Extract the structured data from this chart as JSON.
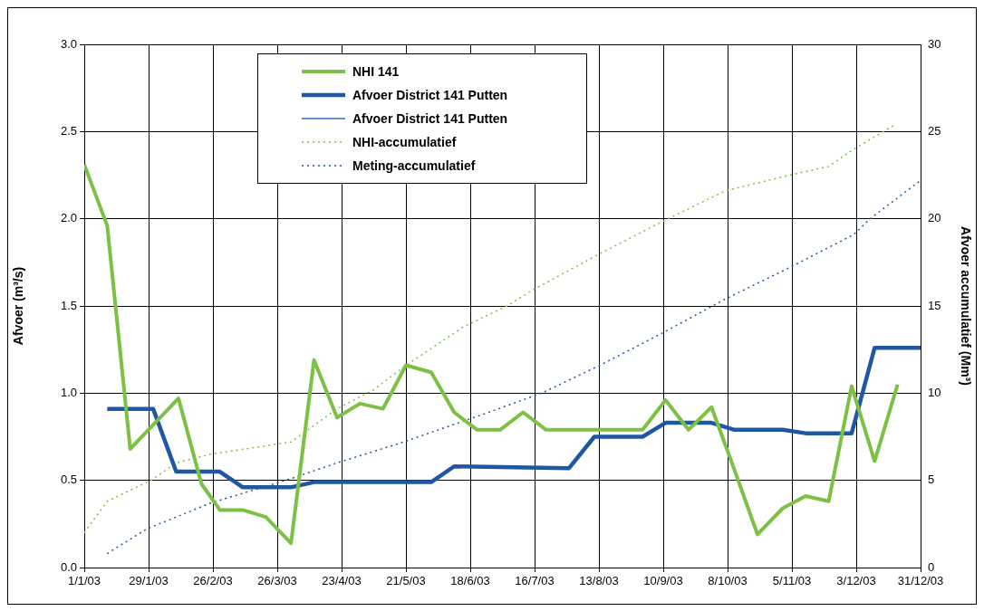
{
  "chart_data": {
    "type": "line",
    "ylabel": "Afvoer (m³/s)",
    "y2label": "Afvoer accumulatief (Mm³)",
    "xlim": [
      "2003-01-01",
      "2003-12-31"
    ],
    "xticks": [
      {
        "value": "2003-01-01",
        "label": "1/1/03"
      },
      {
        "value": "2003-01-29",
        "label": "29/1/03"
      },
      {
        "value": "2003-02-26",
        "label": "26/2/03"
      },
      {
        "value": "2003-03-26",
        "label": "26/3/03"
      },
      {
        "value": "2003-04-23",
        "label": "23/4/03"
      },
      {
        "value": "2003-05-21",
        "label": "21/5/03"
      },
      {
        "value": "2003-06-18",
        "label": "18/6/03"
      },
      {
        "value": "2003-07-16",
        "label": "16/7/03"
      },
      {
        "value": "2003-08-13",
        "label": "13/8/03"
      },
      {
        "value": "2003-09-10",
        "label": "10/9/03"
      },
      {
        "value": "2003-10-08",
        "label": "8/10/03"
      },
      {
        "value": "2003-11-05",
        "label": "5/11/03"
      },
      {
        "value": "2003-12-03",
        "label": "3/12/03"
      },
      {
        "value": "2003-12-31",
        "label": "31/12/03"
      }
    ],
    "ylim": [
      0,
      3
    ],
    "yticks": [
      {
        "value": 0,
        "label": "0.0"
      },
      {
        "value": 0.5,
        "label": "0.5"
      },
      {
        "value": 1,
        "label": "1.0"
      },
      {
        "value": 1.5,
        "label": "1.5"
      },
      {
        "value": 2,
        "label": "2.0"
      },
      {
        "value": 2.5,
        "label": "2.5"
      },
      {
        "value": 3,
        "label": "3.0"
      }
    ],
    "y2lim": [
      0,
      30
    ],
    "y2ticks": [
      0,
      5,
      10,
      15,
      20,
      25,
      30
    ],
    "grid": true,
    "legend": "top left",
    "marker": "none",
    "series": [
      {
        "name": "NHI 141",
        "color": "#7cc143",
        "line_style": "solid",
        "x": [
          "2003-01-01",
          "2003-01-11",
          "2003-01-21",
          "2003-02-11",
          "2003-02-21",
          "2003-03-01",
          "2003-03-11",
          "2003-03-21",
          "2003-04-01",
          "2003-04-11",
          "2003-04-21",
          "2003-05-01",
          "2003-05-11",
          "2003-05-21",
          "2003-06-01",
          "2003-06-11",
          "2003-06-21",
          "2003-07-01",
          "2003-07-11",
          "2003-07-21",
          "2003-09-01",
          "2003-09-11",
          "2003-09-21",
          "2003-10-01",
          "2003-10-11",
          "2003-10-21",
          "2003-11-01",
          "2003-11-11",
          "2003-11-21",
          "2003-12-01",
          "2003-12-11",
          "2003-12-21"
        ],
        "values": [
          2.31,
          1.96,
          0.68,
          0.97,
          0.48,
          0.33,
          0.33,
          0.29,
          0.14,
          1.19,
          0.86,
          0.94,
          0.91,
          1.16,
          1.12,
          0.89,
          0.79,
          0.79,
          0.89,
          0.79,
          0.79,
          0.96,
          0.79,
          0.92,
          0.56,
          0.19,
          0.34,
          0.41,
          0.38,
          1.04,
          0.61,
          1.05
        ]
      },
      {
        "name": "Afvoer District 141 Putten",
        "color": "#1f57a5",
        "line_style": "solid",
        "x": [
          "2003-01-11",
          "2003-01-31",
          "2003-02-10",
          "2003-03-01",
          "2003-03-11",
          "2003-04-01",
          "2003-04-11",
          "2003-06-01",
          "2003-06-11",
          "2003-07-31",
          "2003-08-11",
          "2003-09-01",
          "2003-09-11",
          "2003-10-01",
          "2003-10-11",
          "2003-11-01",
          "2003-11-11",
          "2003-12-01",
          "2003-12-11",
          "2003-12-31"
        ],
        "values": [
          0.91,
          0.91,
          0.55,
          0.55,
          0.46,
          0.46,
          0.49,
          0.49,
          0.58,
          0.57,
          0.75,
          0.75,
          0.83,
          0.83,
          0.79,
          0.79,
          0.77,
          0.77,
          1.26,
          1.26
        ]
      },
      {
        "name": "Afvoer District 141 Putten",
        "color": "#2e6bc0",
        "line_style": "solid"
      },
      {
        "name": "NHI-accumulatief",
        "color": "#7cc143",
        "line_style": "dotted",
        "axis": "y2",
        "x": [
          "2003-01-01",
          "2003-01-11",
          "2003-01-30",
          "2003-02-10",
          "2003-02-25",
          "2003-04-01",
          "2003-04-21",
          "2003-05-07",
          "2003-05-20",
          "2003-06-15",
          "2003-07-04",
          "2003-07-15",
          "2003-08-12",
          "2003-09-09",
          "2003-10-07",
          "2003-11-04",
          "2003-11-21",
          "2003-12-02",
          "2003-12-20"
        ],
        "values": [
          2.0,
          3.8,
          5.0,
          6.0,
          6.5,
          7.2,
          9.1,
          10.2,
          11.5,
          13.8,
          15.0,
          15.9,
          17.9,
          19.8,
          21.6,
          22.5,
          23.0,
          24.0,
          25.4
        ]
      },
      {
        "name": "Meting-accumulatief",
        "color": "#1f57a5",
        "line_style": "dotted",
        "axis": "y2",
        "x": [
          "2003-01-11",
          "2003-01-28",
          "2003-02-25",
          "2003-04-01",
          "2003-04-21",
          "2003-05-20",
          "2003-06-26",
          "2003-07-19",
          "2003-08-12",
          "2003-09-09",
          "2003-10-07",
          "2003-11-04",
          "2003-12-02",
          "2003-12-09",
          "2003-12-31"
        ],
        "values": [
          0.8,
          2.2,
          3.7,
          5.1,
          6.0,
          7.2,
          8.9,
          10.0,
          11.5,
          13.4,
          15.4,
          17.2,
          19.1,
          20.0,
          22.2
        ]
      }
    ]
  }
}
